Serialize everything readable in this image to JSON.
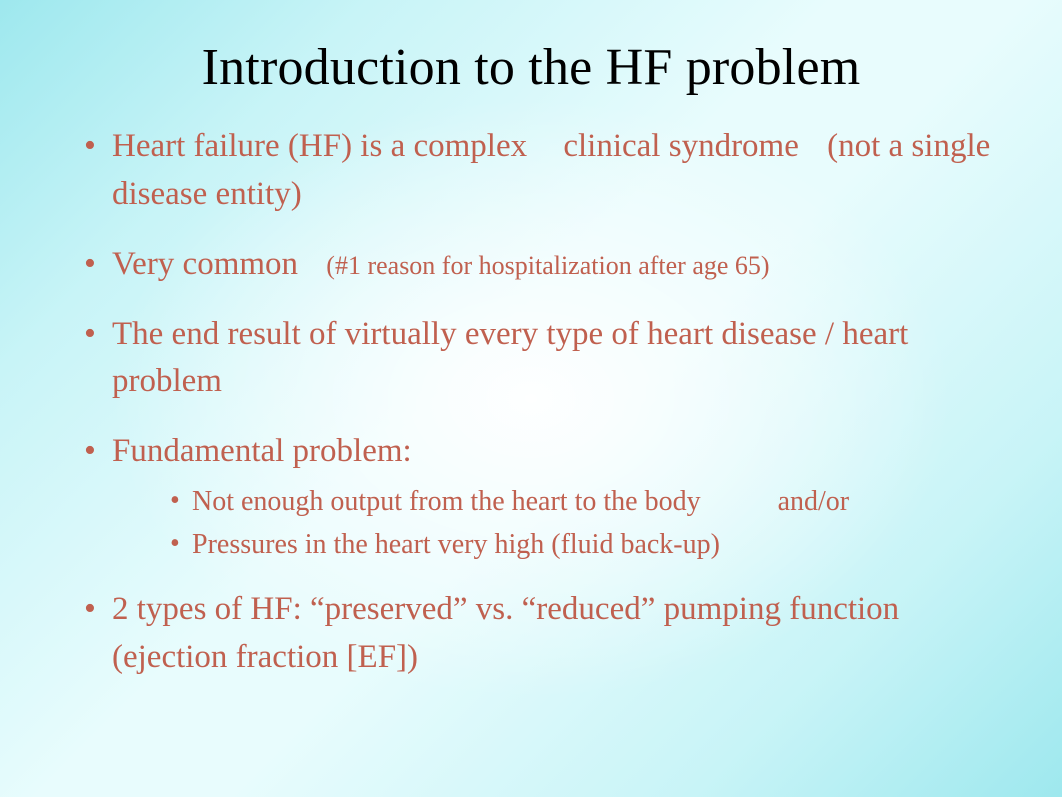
{
  "colors": {
    "title": "#000000",
    "body": "#c0604f",
    "bullet": "#c0604f",
    "bg_edge": "#9ee8ee",
    "bg_center": "#ffffff"
  },
  "typography": {
    "font_family": "Times New Roman",
    "title_size_pt": 40,
    "body_size_pt": 25,
    "sub_size_pt": 21,
    "small_size_pt": 20
  },
  "slide": {
    "title": "Introduction to the HF problem",
    "bullets": [
      {
        "parts": [
          {
            "text": "Heart failure (HF) is a complex"
          },
          {
            "text": "clinical syndrome"
          },
          {
            "text": "(not a single disease entity)"
          }
        ]
      },
      {
        "parts": [
          {
            "text": "Very common"
          },
          {
            "text": "(#1 reason for hospitalization after age 65)",
            "small": true
          }
        ]
      },
      {
        "parts": [
          {
            "text": "The end result of virtually every type of heart disease / heart problem"
          }
        ]
      },
      {
        "parts": [
          {
            "text": "Fundamental problem:"
          }
        ],
        "sub": [
          {
            "parts": [
              {
                "text": "Not enough output from the heart to the body"
              },
              {
                "text": "and/or"
              }
            ]
          },
          {
            "parts": [
              {
                "text": "Pressures in the heart very high (fluid back-up)"
              }
            ]
          }
        ]
      },
      {
        "parts": [
          {
            "text": "2 types of HF: “preserved” vs. “reduced” pumping function (ejection fraction [EF])"
          }
        ]
      }
    ]
  }
}
